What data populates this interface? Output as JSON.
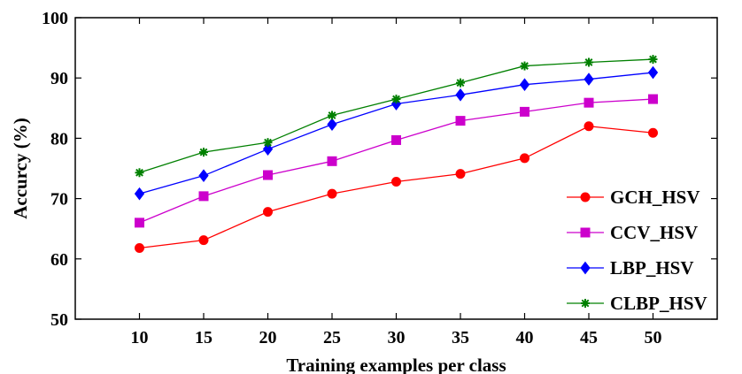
{
  "chart_data": {
    "type": "line",
    "xlabel": "Training examples per class",
    "ylabel": "Accurcy (%)",
    "x": [
      10,
      15,
      20,
      25,
      30,
      35,
      40,
      45,
      50
    ],
    "xlim": [
      5,
      55
    ],
    "ylim": [
      50,
      100
    ],
    "xticks": [
      10,
      15,
      20,
      25,
      30,
      35,
      40,
      45,
      50
    ],
    "yticks": [
      50,
      60,
      70,
      80,
      90,
      100
    ],
    "grid": false,
    "legend_position": "bottom-right",
    "series": [
      {
        "name": "GCH_HSV",
        "color": "#ff0000",
        "marker": "circle",
        "values": [
          61.8,
          63.1,
          67.8,
          70.8,
          72.8,
          74.1,
          76.7,
          82.0,
          80.9
        ]
      },
      {
        "name": "CCV_HSV",
        "color": "#cc00cc",
        "marker": "square",
        "values": [
          66.0,
          70.4,
          73.9,
          76.2,
          79.7,
          82.9,
          84.4,
          85.9,
          86.5
        ]
      },
      {
        "name": "LBP_HSV",
        "color": "#0000ff",
        "marker": "diamond",
        "values": [
          70.8,
          73.8,
          78.2,
          82.3,
          85.7,
          87.2,
          88.9,
          89.8,
          90.9
        ]
      },
      {
        "name": "CLBP_HSV",
        "color": "#008000",
        "marker": "star",
        "values": [
          74.3,
          77.7,
          79.3,
          83.8,
          86.5,
          89.2,
          92.0,
          92.6,
          93.1
        ]
      }
    ]
  }
}
